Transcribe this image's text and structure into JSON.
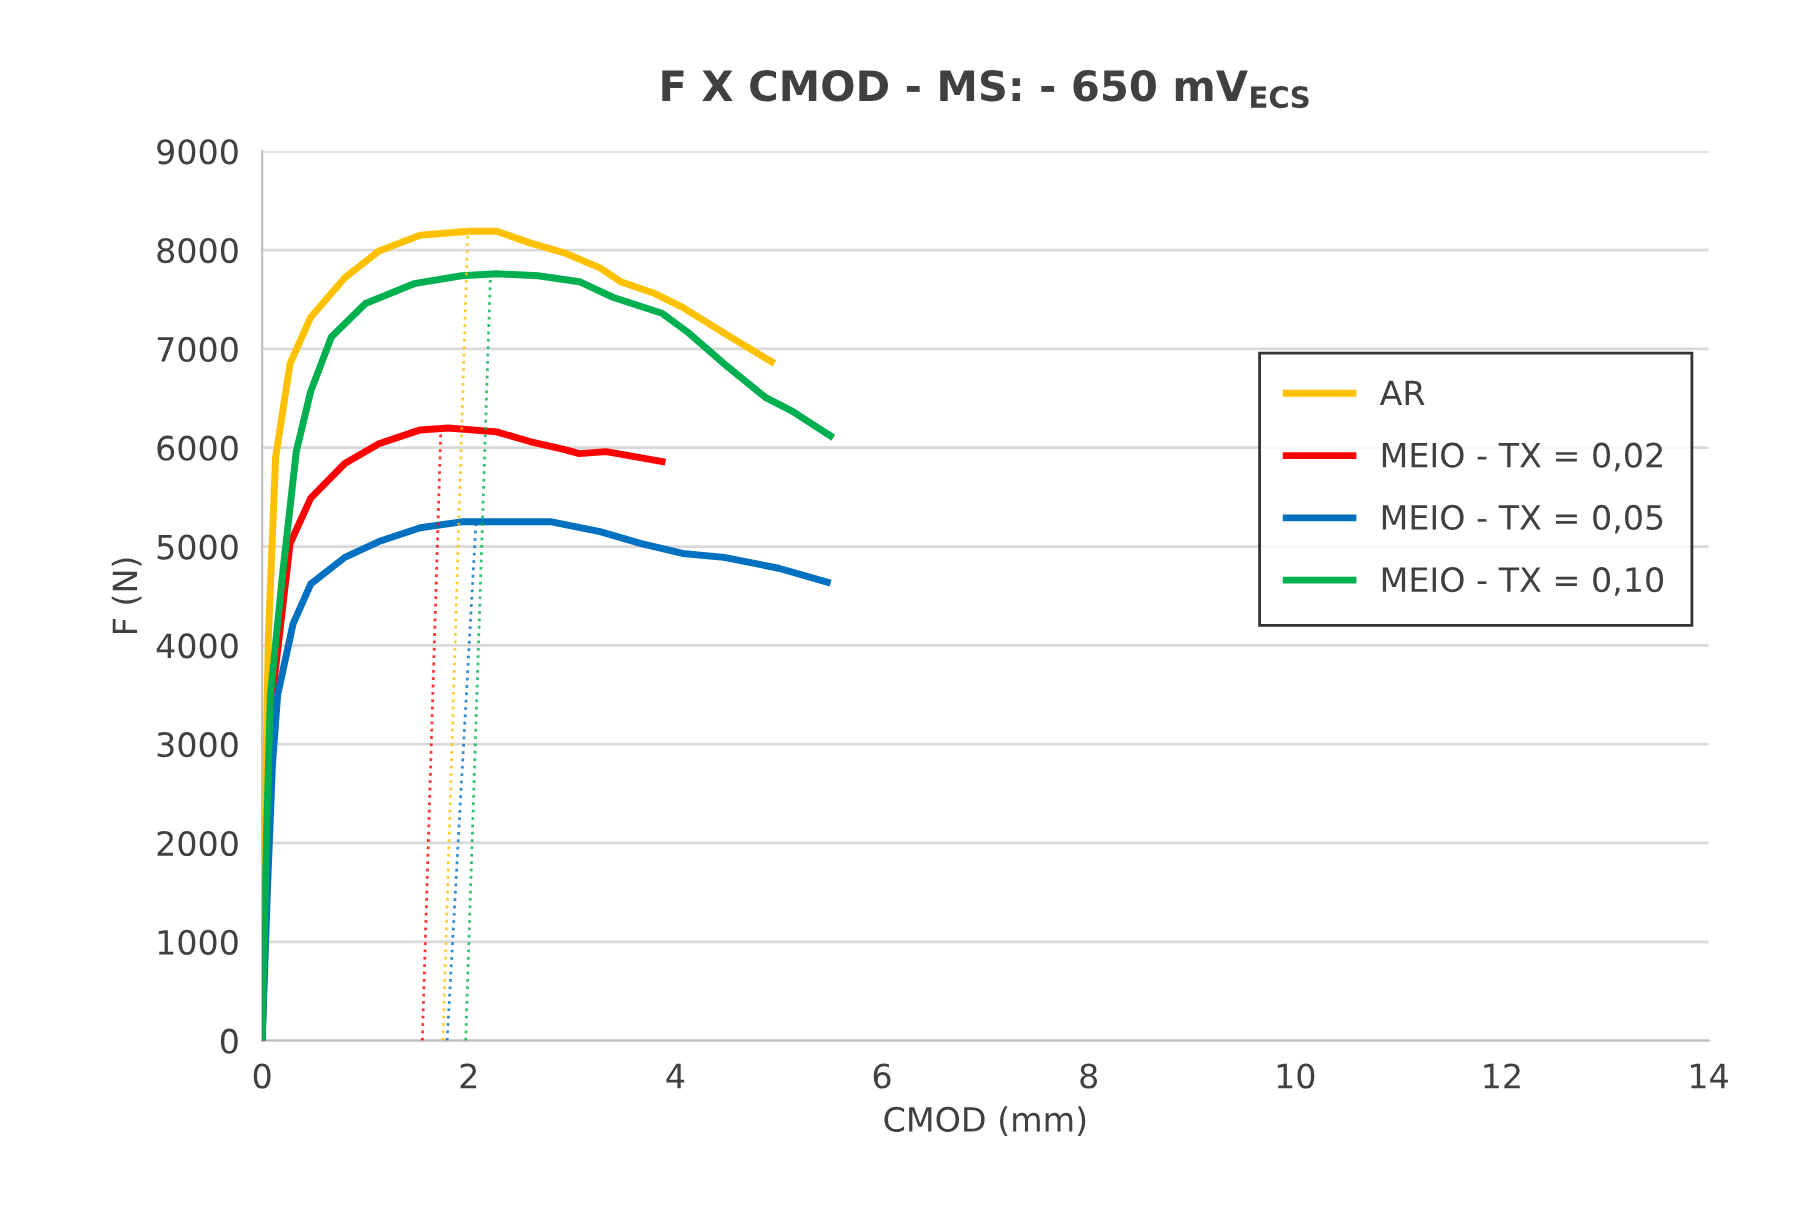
{
  "chart_data": {
    "type": "line",
    "title": "F X CMOD - MS: - 650 mV$_{ECS}$",
    "xlabel": "CMOD (mm)",
    "ylabel": "F (N)",
    "xlim": [
      0,
      14
    ],
    "xticks": [
      0,
      2,
      4,
      6,
      8,
      10,
      12,
      14
    ],
    "ylim": [
      0,
      9000
    ],
    "yticks": [
      0,
      1000,
      2000,
      3000,
      4000,
      5000,
      6000,
      7000,
      8000,
      9000
    ],
    "grid": "y",
    "legend": "right",
    "marker": "none",
    "series": [
      {
        "name": "AR",
        "color": "#ffc000",
        "line_style": "solid",
        "x": [
          0,
          0.04,
          0.06,
          0.13,
          0.27,
          0.47,
          0.8,
          1.13,
          1.53,
          2.0,
          2.27,
          2.6,
          2.93,
          3.27,
          3.47,
          3.8,
          4.07,
          4.47,
          4.93
        ],
        "values": [
          0,
          3000,
          4080,
          5900,
          6850,
          7320,
          7720,
          7990,
          8150,
          8190,
          8190,
          8070,
          7970,
          7820,
          7680,
          7560,
          7420,
          7160,
          6870
        ]
      },
      {
        "name": "MEIO - TX = 0,02",
        "color": "#ff0000",
        "line_style": "solid",
        "x": [
          0,
          0.1,
          0.27,
          0.47,
          0.8,
          1.13,
          1.53,
          1.8,
          2.27,
          2.6,
          2.93,
          3.07,
          3.33,
          3.87
        ],
        "values": [
          0,
          3500,
          5030,
          5490,
          5840,
          6040,
          6180,
          6200,
          6160,
          6060,
          5980,
          5940,
          5960,
          5860
        ]
      },
      {
        "name": "MEIO - TX = 0,05",
        "color": "#0070c0",
        "line_style": "solid",
        "x": [
          0,
          0.05,
          0.1,
          0.15,
          0.3,
          0.47,
          0.8,
          1.13,
          1.53,
          1.93,
          2.8,
          3.27,
          3.67,
          4.07,
          4.47,
          5.0,
          5.47
        ],
        "values": [
          0,
          1500,
          2800,
          3500,
          4220,
          4620,
          4890,
          5050,
          5190,
          5250,
          5250,
          5150,
          5030,
          4930,
          4890,
          4780,
          4640
        ]
      },
      {
        "name": "MEIO - TX = 0,10",
        "color": "#00b050",
        "line_style": "solid",
        "x": [
          0,
          0.04,
          0.08,
          0.2,
          0.33,
          0.47,
          0.67,
          1.0,
          1.47,
          1.93,
          2.27,
          2.67,
          3.07,
          3.4,
          3.87,
          4.13,
          4.47,
          4.87,
          5.13,
          5.5
        ],
        "values": [
          0,
          2000,
          3500,
          4740,
          5960,
          6570,
          7120,
          7460,
          7660,
          7740,
          7760,
          7740,
          7680,
          7520,
          7360,
          7160,
          6850,
          6510,
          6370,
          6120
        ]
      },
      {
        "color": "#ff0000",
        "line_style": "dotted",
        "x": [
          1.55,
          1.73
        ],
        "values": [
          0,
          6200
        ]
      },
      {
        "color": "#ffc000",
        "line_style": "dotted",
        "x": [
          1.75,
          1.99
        ],
        "values": [
          0,
          8190
        ]
      },
      {
        "color": "#0070c0",
        "line_style": "dotted",
        "x": [
          1.79,
          2.07
        ],
        "values": [
          0,
          5250
        ]
      },
      {
        "color": "#00b050",
        "line_style": "dotted",
        "x": [
          1.97,
          2.21
        ],
        "values": [
          0,
          7760
        ]
      }
    ]
  }
}
